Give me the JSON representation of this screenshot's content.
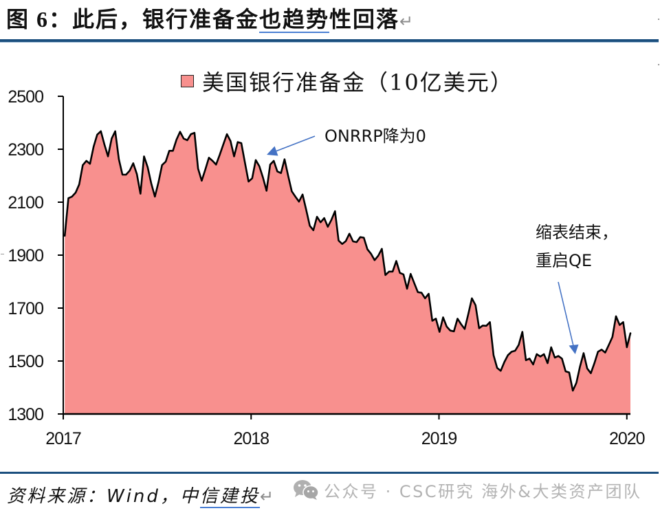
{
  "title": {
    "prefix": "图 6：此后，银行准备金",
    "underlined": "也趋势",
    "suffix": "性回落",
    "return_mark": "↵"
  },
  "chart": {
    "legend_label": "美国银行准备金（10亿美元）",
    "annotations": {
      "onrrp": {
        "text": "ONRRP降为0"
      },
      "qe": {
        "lines": [
          "缩表结束，",
          "重启QE"
        ]
      }
    }
  },
  "source": {
    "prefix": "资料来源：Wind，中",
    "underlined": "信建投",
    "return_mark": "↵"
  },
  "watermark": {
    "icon": "wechat-icon",
    "text": "公众号 · CSC研究 海外&大类资产团队"
  },
  "colors": {
    "rule": "#1b4f7e",
    "area_fill": "#f8908e",
    "line": "#000000",
    "arrow": "#4472c4",
    "watermark": "#b3b3b3"
  },
  "chart_data": {
    "type": "area",
    "title": "美国银行准备金（10亿美元）",
    "xlabel": "",
    "ylabel": "",
    "legend_position": "top-center",
    "grid": false,
    "ylim": [
      1300,
      2500
    ],
    "yticks": [
      1300,
      1500,
      1700,
      1900,
      2100,
      2300,
      2500
    ],
    "xlim": [
      "2017-01-01",
      "2020-01-08"
    ],
    "xticks": [
      "2017",
      "2018",
      "2019",
      "2020"
    ],
    "xtick_dates": [
      "2017-01-01",
      "2018-01-01",
      "2019-01-01",
      "2020-01-01"
    ],
    "x": [
      "2017-01-04",
      "2017-01-11",
      "2017-01-18",
      "2017-01-25",
      "2017-02-01",
      "2017-02-08",
      "2017-02-15",
      "2017-02-22",
      "2017-03-01",
      "2017-03-08",
      "2017-03-15",
      "2017-03-22",
      "2017-03-29",
      "2017-04-05",
      "2017-04-12",
      "2017-04-19",
      "2017-04-26",
      "2017-05-03",
      "2017-05-10",
      "2017-05-17",
      "2017-05-24",
      "2017-05-31",
      "2017-06-07",
      "2017-06-14",
      "2017-06-21",
      "2017-06-28",
      "2017-07-05",
      "2017-07-12",
      "2017-07-19",
      "2017-07-26",
      "2017-08-02",
      "2017-08-09",
      "2017-08-16",
      "2017-08-23",
      "2017-08-30",
      "2017-09-06",
      "2017-09-13",
      "2017-09-20",
      "2017-09-27",
      "2017-10-04",
      "2017-10-11",
      "2017-10-18",
      "2017-10-25",
      "2017-11-01",
      "2017-11-08",
      "2017-11-15",
      "2017-11-22",
      "2017-11-29",
      "2017-12-06",
      "2017-12-13",
      "2017-12-20",
      "2017-12-27",
      "2018-01-03",
      "2018-01-10",
      "2018-01-17",
      "2018-01-24",
      "2018-01-31",
      "2018-02-07",
      "2018-02-14",
      "2018-02-21",
      "2018-02-28",
      "2018-03-07",
      "2018-03-14",
      "2018-03-21",
      "2018-03-28",
      "2018-04-04",
      "2018-04-11",
      "2018-04-18",
      "2018-04-25",
      "2018-05-02",
      "2018-05-09",
      "2018-05-16",
      "2018-05-23",
      "2018-05-30",
      "2018-06-06",
      "2018-06-13",
      "2018-06-20",
      "2018-06-27",
      "2018-07-04",
      "2018-07-11",
      "2018-07-18",
      "2018-07-25",
      "2018-08-01",
      "2018-08-08",
      "2018-08-15",
      "2018-08-22",
      "2018-08-29",
      "2018-09-05",
      "2018-09-12",
      "2018-09-19",
      "2018-09-26",
      "2018-10-03",
      "2018-10-10",
      "2018-10-17",
      "2018-10-24",
      "2018-10-31",
      "2018-11-07",
      "2018-11-14",
      "2018-11-21",
      "2018-11-28",
      "2018-12-05",
      "2018-12-12",
      "2018-12-19",
      "2018-12-26",
      "2019-01-02",
      "2019-01-09",
      "2019-01-16",
      "2019-01-23",
      "2019-01-30",
      "2019-02-06",
      "2019-02-13",
      "2019-02-20",
      "2019-02-27",
      "2019-03-06",
      "2019-03-13",
      "2019-03-20",
      "2019-03-27",
      "2019-04-03",
      "2019-04-10",
      "2019-04-17",
      "2019-04-24",
      "2019-05-01",
      "2019-05-08",
      "2019-05-15",
      "2019-05-22",
      "2019-05-29",
      "2019-06-05",
      "2019-06-12",
      "2019-06-19",
      "2019-06-26",
      "2019-07-03",
      "2019-07-10",
      "2019-07-17",
      "2019-07-24",
      "2019-07-31",
      "2019-08-07",
      "2019-08-14",
      "2019-08-21",
      "2019-08-28",
      "2019-09-04",
      "2019-09-11",
      "2019-09-18",
      "2019-09-25",
      "2019-10-02",
      "2019-10-09",
      "2019-10-16",
      "2019-10-23",
      "2019-10-30",
      "2019-11-06",
      "2019-11-13",
      "2019-11-20",
      "2019-11-27",
      "2019-12-04",
      "2019-12-11",
      "2019-12-18",
      "2019-12-25",
      "2020-01-01",
      "2020-01-08"
    ],
    "series": [
      {
        "name": "美国银行准备金（10亿美元）",
        "values": [
          1973,
          2115,
          2121,
          2136,
          2167,
          2240,
          2256,
          2245,
          2310,
          2355,
          2368,
          2318,
          2273,
          2340,
          2368,
          2262,
          2204,
          2204,
          2219,
          2247,
          2206,
          2132,
          2273,
          2232,
          2171,
          2121,
          2175,
          2240,
          2253,
          2294,
          2294,
          2336,
          2366,
          2340,
          2334,
          2357,
          2362,
          2227,
          2181,
          2223,
          2268,
          2256,
          2242,
          2279,
          2318,
          2357,
          2331,
          2273,
          2327,
          2323,
          2249,
          2178,
          2190,
          2259,
          2236,
          2193,
          2143,
          2242,
          2256,
          2216,
          2210,
          2262,
          2199,
          2141,
          2121,
          2102,
          2129,
          2071,
          2011,
          1994,
          2045,
          2024,
          2040,
          2007,
          2033,
          2066,
          1955,
          1942,
          1953,
          1981,
          1952,
          1949,
          1968,
          1966,
          1922,
          1905,
          1881,
          1898,
          1924,
          1825,
          1838,
          1838,
          1878,
          1833,
          1827,
          1773,
          1829,
          1794,
          1760,
          1758,
          1737,
          1754,
          1652,
          1660,
          1610,
          1665,
          1630,
          1615,
          1612,
          1660,
          1639,
          1621,
          1678,
          1737,
          1711,
          1624,
          1634,
          1633,
          1647,
          1522,
          1474,
          1463,
          1496,
          1522,
          1535,
          1539,
          1561,
          1610,
          1503,
          1509,
          1487,
          1526,
          1517,
          1526,
          1492,
          1552,
          1513,
          1519,
          1509,
          1461,
          1457,
          1388,
          1418,
          1479,
          1530,
          1472,
          1454,
          1492,
          1535,
          1543,
          1532,
          1561,
          1591,
          1669,
          1636,
          1647,
          1552,
          1605
        ]
      }
    ],
    "annotations": [
      {
        "text": "ONRRP降为0",
        "target_date": "2018-01-31",
        "arrow": true
      },
      {
        "text": "缩表结束，重启QE",
        "target_date": "2019-09-18",
        "arrow": true
      }
    ]
  }
}
